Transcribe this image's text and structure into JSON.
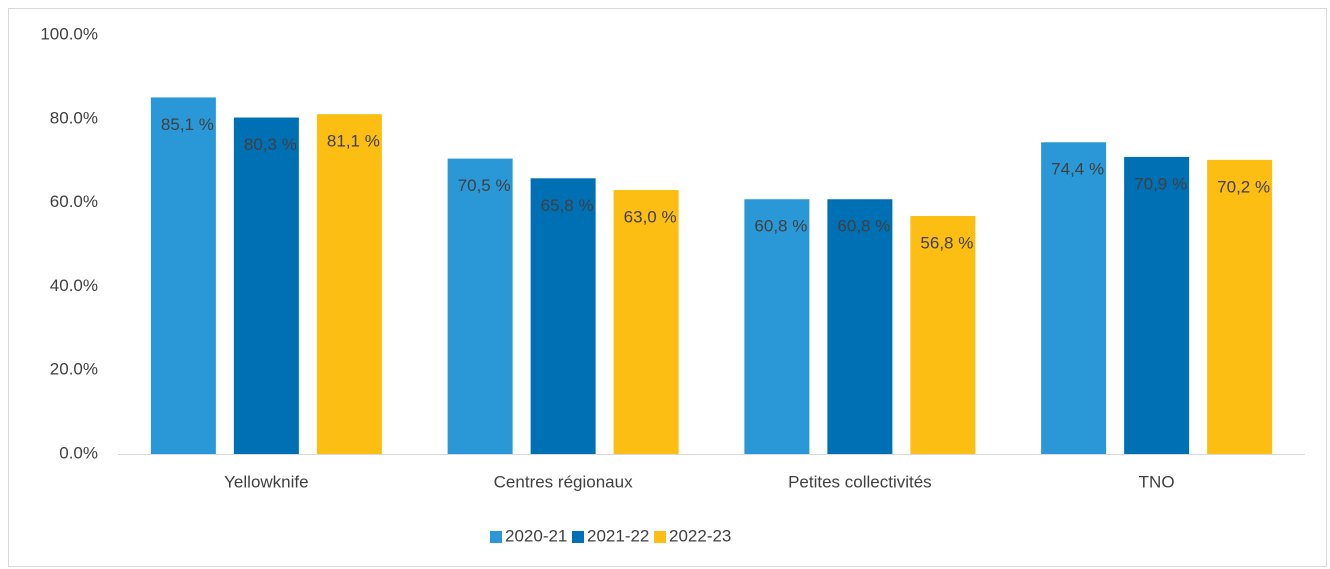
{
  "chart_data": {
    "type": "bar",
    "categories": [
      "Yellowknife",
      "Centres régionaux",
      "Petites collectivités",
      "TNO"
    ],
    "series": [
      {
        "name": "2020-21",
        "color": "#2a98d6",
        "values": [
          85.1,
          70.5,
          60.8,
          74.4
        ],
        "value_labels": [
          "85,1 %",
          "70,5 %",
          "60,8 %",
          "74,4 %"
        ]
      },
      {
        "name": "2021-22",
        "color": "#0070b5",
        "values": [
          80.3,
          65.8,
          60.8,
          70.9
        ],
        "value_labels": [
          "80,3 %",
          "65,8 %",
          "60,8 %",
          "70,9 %"
        ]
      },
      {
        "name": "2022-23",
        "color": "#fcbe12",
        "values": [
          81.1,
          63.0,
          56.8,
          70.2
        ],
        "value_labels": [
          "81,1 %",
          "63,0 %",
          "56,8 %",
          "70,2 %"
        ]
      }
    ],
    "ylim": [
      0,
      100
    ],
    "yticks": [
      {
        "value": 0,
        "label": "0.0%"
      },
      {
        "value": 20,
        "label": "20.0%"
      },
      {
        "value": 40,
        "label": "40.0%"
      },
      {
        "value": 60,
        "label": "60.0%"
      },
      {
        "value": 80,
        "label": "80.0%"
      },
      {
        "value": 100,
        "label": "100.0%"
      }
    ],
    "grid": false,
    "legend": "bottom"
  }
}
